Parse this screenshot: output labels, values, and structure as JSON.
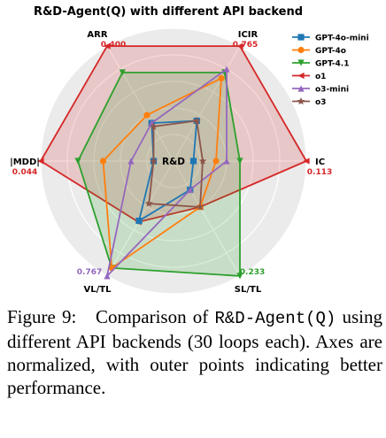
{
  "chart_data": {
    "type": "radar",
    "title": "R&D-Agent(Q) with different API backend",
    "center_label": "R&D",
    "axes": [
      "ARR",
      "ICIR",
      "IC",
      "SL/TL",
      "VL/TL",
      "|MDD|"
    ],
    "value_labels": [
      {
        "axis": "ARR",
        "text": "0.400",
        "color": "#d62728"
      },
      {
        "axis": "ICIR",
        "text": "0.765",
        "color": "#d62728"
      },
      {
        "axis": "IC",
        "text": "0.113",
        "color": "#d62728"
      },
      {
        "axis": "SL/TL",
        "text": "0.233",
        "color": "#2ca02c"
      },
      {
        "axis": "VL/TL",
        "text": "0.767",
        "color": "#9467bd"
      },
      {
        "axis": "|MDD|",
        "text": "0.044",
        "color": "#d62728"
      }
    ],
    "range": [
      0,
      1
    ],
    "grid": true,
    "legend_position": "top-right",
    "series": [
      {
        "name": "GPT-4o-mini",
        "color": "#1f77b4",
        "marker": "square",
        "values": [
          0.33,
          0.35,
          0.15,
          0.25,
          0.52,
          0.15
        ],
        "fill": false
      },
      {
        "name": "GPT-4o",
        "color": "#ff7f0e",
        "marker": "circle",
        "values": [
          0.4,
          0.72,
          0.32,
          0.4,
          0.93,
          0.53
        ],
        "fill": false
      },
      {
        "name": "GPT-4.1",
        "color": "#2ca02c",
        "marker": "triangle-down",
        "values": [
          0.77,
          0.77,
          0.5,
          1.0,
          0.93,
          0.72
        ],
        "fill": true
      },
      {
        "name": "o1",
        "color": "#d62728",
        "marker": "triangle-left",
        "values": [
          1.0,
          1.0,
          1.0,
          0.4,
          0.53,
          1.0
        ],
        "fill": true
      },
      {
        "name": "o3-mini",
        "color": "#9467bd",
        "marker": "triangle-up",
        "values": [
          0.33,
          0.8,
          0.4,
          0.25,
          1.0,
          0.32
        ],
        "fill": false
      },
      {
        "name": "o3",
        "color": "#8c564b",
        "marker": "star",
        "values": [
          0.3,
          0.35,
          0.22,
          0.4,
          0.37,
          0.15
        ],
        "fill": false
      }
    ]
  },
  "caption": {
    "figure_label": "Figure 9:",
    "text_1": "Comparison of ",
    "code_1": "R&D-Agent(Q)",
    "text_2": " using different API backends (30 loops each). Axes are normalized, with outer points indicating better performance."
  }
}
